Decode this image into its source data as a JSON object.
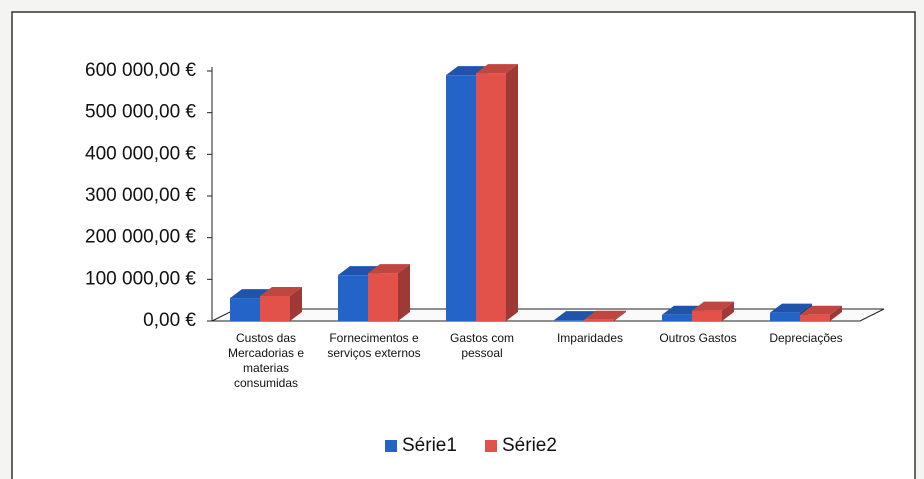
{
  "chart_data": {
    "type": "bar3d",
    "categories": [
      "Custos das Mercadorias e materias consumidas",
      "Fornecimentos e serviços externos",
      "Gastos com pessoal",
      "Imparidades",
      "Outros Gastos",
      "Depreciações"
    ],
    "series": [
      {
        "name": "Série1",
        "color": "#2463c8",
        "values": [
          55000,
          110000,
          590000,
          2000,
          15000,
          20000
        ]
      },
      {
        "name": "Série2",
        "color": "#e2524b",
        "values": [
          60000,
          115000,
          595000,
          3000,
          25000,
          15000
        ]
      }
    ],
    "ylim": [
      0,
      600000
    ],
    "yticks": [
      {
        "value": 0,
        "label": "0,00 €"
      },
      {
        "value": 100000,
        "label": "100 000,00 €"
      },
      {
        "value": 200000,
        "label": "200 000,00 €"
      },
      {
        "value": 300000,
        "label": "300 000,00 €"
      },
      {
        "value": 400000,
        "label": "400 000,00 €"
      },
      {
        "value": 500000,
        "label": "500 000,00 €"
      },
      {
        "value": 600000,
        "label": "600 000,00 €"
      }
    ],
    "legend": "bottom"
  }
}
